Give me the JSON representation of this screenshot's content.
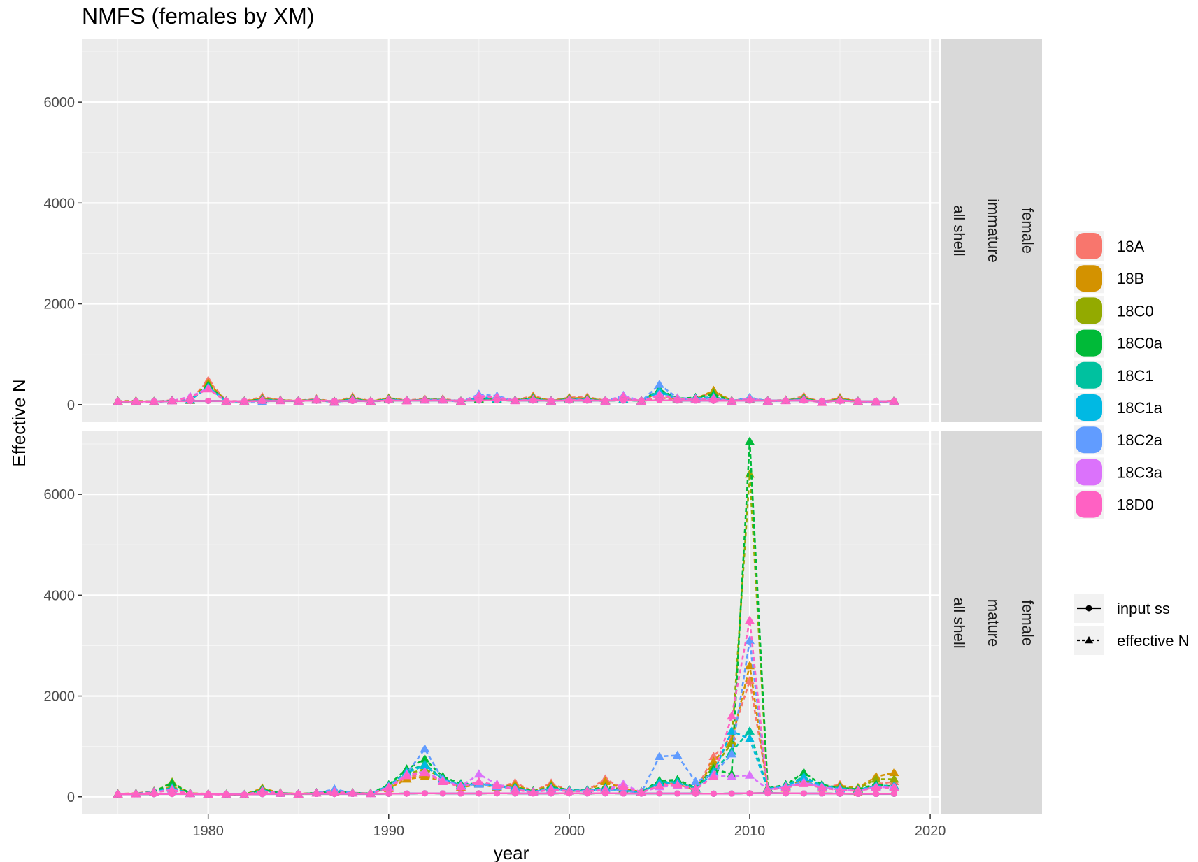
{
  "chart_data": {
    "type": "line",
    "title": "NMFS (females by XM)",
    "xlabel": "year",
    "ylabel": "Effective N",
    "xlim": [
      1973,
      2020.5
    ],
    "ylim": [
      -350,
      7250
    ],
    "x_ticks": [
      1980,
      1990,
      2000,
      2010,
      2020
    ],
    "y_ticks": [
      0,
      2000,
      4000,
      6000
    ],
    "grid": true,
    "legend_position": "right",
    "facets": [
      {
        "labels": [
          "all shell",
          "immature",
          "female"
        ]
      },
      {
        "labels": [
          "all shell",
          "mature",
          "female"
        ]
      }
    ],
    "series": [
      {
        "name": "18A",
        "color": "#F8766D"
      },
      {
        "name": "18B",
        "color": "#D39200"
      },
      {
        "name": "18C0",
        "color": "#93AA00"
      },
      {
        "name": "18C0a",
        "color": "#00BA38"
      },
      {
        "name": "18C1",
        "color": "#00C19F"
      },
      {
        "name": "18C1a",
        "color": "#00B9E3"
      },
      {
        "name": "18C2a",
        "color": "#619CFF"
      },
      {
        "name": "18C3a",
        "color": "#DB72FB"
      },
      {
        "name": "18D0",
        "color": "#FF61C3"
      }
    ],
    "line_types": [
      {
        "label": "input ss",
        "dash": "solid",
        "marker": "circle"
      },
      {
        "label": "effective N",
        "dash": "dashed",
        "marker": "triangle"
      }
    ],
    "years": [
      1975,
      1976,
      1977,
      1978,
      1979,
      1980,
      1981,
      1982,
      1983,
      1984,
      1985,
      1986,
      1987,
      1988,
      1989,
      1990,
      1991,
      1992,
      1993,
      1994,
      1995,
      1996,
      1997,
      1998,
      1999,
      2000,
      2001,
      2002,
      2003,
      2004,
      2005,
      2006,
      2007,
      2008,
      2009,
      2010,
      2011,
      2012,
      2013,
      2014,
      2015,
      2016,
      2017,
      2018
    ],
    "input_ss": {
      "immature": [
        60,
        62,
        65,
        68,
        72,
        75,
        70,
        68,
        72,
        74,
        76,
        78,
        72,
        75,
        70,
        78,
        80,
        82,
        80,
        78,
        82,
        85,
        80,
        82,
        78,
        80,
        82,
        80,
        84,
        82,
        86,
        82,
        80,
        78,
        76,
        82,
        80,
        78,
        80,
        72,
        70,
        68,
        65,
        70
      ],
      "mature": [
        50,
        52,
        55,
        58,
        54,
        50,
        48,
        46,
        55,
        60,
        62,
        60,
        58,
        60,
        58,
        62,
        65,
        70,
        68,
        66,
        68,
        70,
        68,
        66,
        68,
        70,
        68,
        70,
        66,
        65,
        68,
        66,
        64,
        62,
        65,
        70,
        72,
        70,
        68,
        66,
        62,
        60,
        58,
        62
      ]
    },
    "effective_n": {
      "immature": {
        "18A": [
          70,
          75,
          65,
          85,
          80,
          480,
          75,
          70,
          150,
          90,
          80,
          110,
          60,
          150,
          70,
          130,
          85,
          110,
          110,
          70,
          120,
          110,
          90,
          170,
          80,
          140,
          150,
          80,
          110,
          80,
          140,
          100,
          120,
          250,
          80,
          110,
          80,
          90,
          160,
          50,
          140,
          70,
          60,
          80
        ],
        "18B": [
          65,
          70,
          60,
          80,
          90,
          430,
          70,
          65,
          120,
          85,
          75,
          100,
          55,
          130,
          65,
          120,
          80,
          100,
          100,
          65,
          110,
          100,
          85,
          150,
          75,
          130,
          130,
          75,
          100,
          75,
          200,
          100,
          110,
          280,
          75,
          100,
          75,
          85,
          140,
          50,
          120,
          65,
          55,
          75
        ],
        "18C0": [
          60,
          65,
          58,
          78,
          85,
          400,
          68,
          62,
          110,
          82,
          72,
          95,
          52,
          120,
          62,
          110,
          78,
          95,
          95,
          62,
          105,
          95,
          82,
          140,
          72,
          120,
          120,
          72,
          95,
          72,
          250,
          110,
          130,
          240,
          72,
          95,
          72,
          82,
          130,
          48,
          110,
          62,
          52,
          72
        ],
        "18C0a": [
          62,
          66,
          59,
          79,
          88,
          380,
          69,
          63,
          105,
          83,
          73,
          96,
          53,
          115,
          63,
          108,
          79,
          96,
          96,
          63,
          104,
          96,
          83,
          120,
          73,
          110,
          110,
          73,
          96,
          73,
          300,
          120,
          140,
          200,
          73,
          100,
          73,
          83,
          120,
          48,
          100,
          62,
          53,
          73
        ],
        "18C1": [
          58,
          62,
          55,
          75,
          90,
          350,
          66,
          60,
          95,
          80,
          70,
          92,
          50,
          105,
          60,
          100,
          75,
          92,
          92,
          60,
          130,
          110,
          80,
          110,
          70,
          100,
          100,
          70,
          92,
          70,
          280,
          115,
          125,
          150,
          70,
          130,
          70,
          80,
          110,
          45,
          95,
          60,
          50,
          70
        ],
        "18C1a": [
          57,
          61,
          54,
          74,
          100,
          340,
          65,
          59,
          90,
          79,
          69,
          91,
          49,
          100,
          59,
          98,
          74,
          91,
          91,
          59,
          150,
          120,
          79,
          105,
          69,
          98,
          98,
          69,
          110,
          69,
          250,
          110,
          120,
          140,
          69,
          140,
          69,
          79,
          105,
          45,
          92,
          59,
          49,
          69
        ],
        "18C2a": [
          56,
          60,
          53,
          73,
          150,
          330,
          64,
          58,
          60,
          78,
          68,
          90,
          48,
          98,
          58,
          96,
          73,
          90,
          90,
          58,
          200,
          170,
          78,
          100,
          68,
          96,
          96,
          68,
          180,
          68,
          400,
          130,
          115,
          130,
          68,
          130,
          68,
          78,
          100,
          44,
          90,
          58,
          48,
          68
        ],
        "18C3a": [
          55,
          59,
          52,
          72,
          160,
          320,
          63,
          57,
          85,
          77,
          67,
          89,
          47,
          96,
          57,
          94,
          72,
          89,
          89,
          57,
          180,
          150,
          77,
          98,
          67,
          94,
          94,
          67,
          170,
          67,
          200,
          120,
          110,
          120,
          67,
          120,
          67,
          77,
          98,
          44,
          88,
          57,
          47,
          67
        ],
        "18D0": [
          54,
          58,
          51,
          71,
          140,
          310,
          62,
          56,
          82,
          76,
          66,
          88,
          46,
          94,
          56,
          92,
          71,
          88,
          88,
          56,
          160,
          140,
          76,
          96,
          66,
          92,
          92,
          66,
          150,
          66,
          180,
          110,
          105,
          115,
          66,
          110,
          66,
          76,
          96,
          43,
          86,
          56,
          46,
          66
        ]
      },
      "mature": {
        "18A": [
          60,
          70,
          110,
          180,
          70,
          60,
          50,
          45,
          140,
          80,
          60,
          80,
          90,
          80,
          70,
          160,
          400,
          430,
          330,
          190,
          280,
          190,
          280,
          110,
          270,
          120,
          130,
          350,
          170,
          100,
          260,
          260,
          120,
          800,
          1200,
          2300,
          180,
          180,
          300,
          180,
          240,
          80,
          250,
          300
        ],
        "18B": [
          55,
          65,
          105,
          200,
          68,
          58,
          48,
          43,
          170,
          75,
          58,
          78,
          95,
          78,
          68,
          170,
          350,
          400,
          320,
          185,
          250,
          185,
          240,
          105,
          240,
          115,
          125,
          300,
          160,
          95,
          280,
          280,
          130,
          700,
          1100,
          2600,
          170,
          170,
          290,
          170,
          220,
          180,
          400,
          480
        ],
        "18C0": [
          52,
          62,
          100,
          290,
          66,
          56,
          46,
          42,
          150,
          72,
          56,
          76,
          120,
          76,
          66,
          200,
          450,
          550,
          380,
          220,
          270,
          200,
          200,
          110,
          200,
          130,
          130,
          200,
          150,
          100,
          300,
          320,
          160,
          600,
          1050,
          6400,
          160,
          200,
          350,
          200,
          200,
          160,
          350,
          350
        ],
        "18C0a": [
          53,
          63,
          102,
          270,
          67,
          57,
          47,
          42,
          145,
          73,
          57,
          77,
          110,
          77,
          67,
          240,
          550,
          750,
          400,
          260,
          260,
          230,
          190,
          110,
          190,
          140,
          140,
          180,
          140,
          100,
          320,
          340,
          180,
          550,
          450,
          7050,
          170,
          240,
          480,
          240,
          180,
          150,
          250,
          200
        ],
        "18C1": [
          51,
          61,
          98,
          180,
          65,
          55,
          45,
          41,
          130,
          71,
          55,
          75,
          130,
          75,
          65,
          220,
          500,
          650,
          360,
          240,
          270,
          220,
          180,
          100,
          180,
          130,
          130,
          170,
          130,
          95,
          290,
          300,
          170,
          500,
          900,
          1300,
          160,
          220,
          400,
          220,
          170,
          140,
          220,
          220
        ],
        "18C1a": [
          50,
          60,
          96,
          160,
          64,
          54,
          44,
          40,
          125,
          70,
          54,
          74,
          140,
          74,
          64,
          210,
          480,
          620,
          350,
          230,
          260,
          210,
          170,
          98,
          170,
          125,
          125,
          160,
          125,
          92,
          270,
          280,
          160,
          480,
          1300,
          1150,
          155,
          210,
          380,
          210,
          160,
          135,
          210,
          210
        ],
        "18C2a": [
          49,
          59,
          94,
          150,
          63,
          53,
          43,
          39,
          120,
          69,
          53,
          73,
          150,
          73,
          63,
          200,
          460,
          950,
          340,
          220,
          250,
          200,
          160,
          96,
          160,
          120,
          120,
          150,
          120,
          90,
          800,
          820,
          300,
          450,
          850,
          3100,
          150,
          200,
          300,
          200,
          150,
          130,
          200,
          200
        ],
        "18C3a": [
          48,
          58,
          92,
          140,
          62,
          52,
          42,
          38,
          115,
          68,
          52,
          72,
          100,
          72,
          62,
          190,
          440,
          500,
          320,
          210,
          450,
          250,
          150,
          94,
          150,
          115,
          115,
          140,
          250,
          88,
          200,
          220,
          140,
          420,
          400,
          430,
          145,
          190,
          280,
          190,
          140,
          125,
          190,
          190
        ],
        "18D0": [
          47,
          57,
          90,
          130,
          61,
          51,
          41,
          37,
          110,
          67,
          51,
          71,
          95,
          71,
          61,
          180,
          420,
          480,
          300,
          200,
          300,
          230,
          140,
          92,
          140,
          110,
          110,
          130,
          200,
          86,
          220,
          240,
          150,
          400,
          1600,
          3500,
          140,
          180,
          260,
          180,
          130,
          120,
          180,
          180
        ]
      }
    }
  }
}
